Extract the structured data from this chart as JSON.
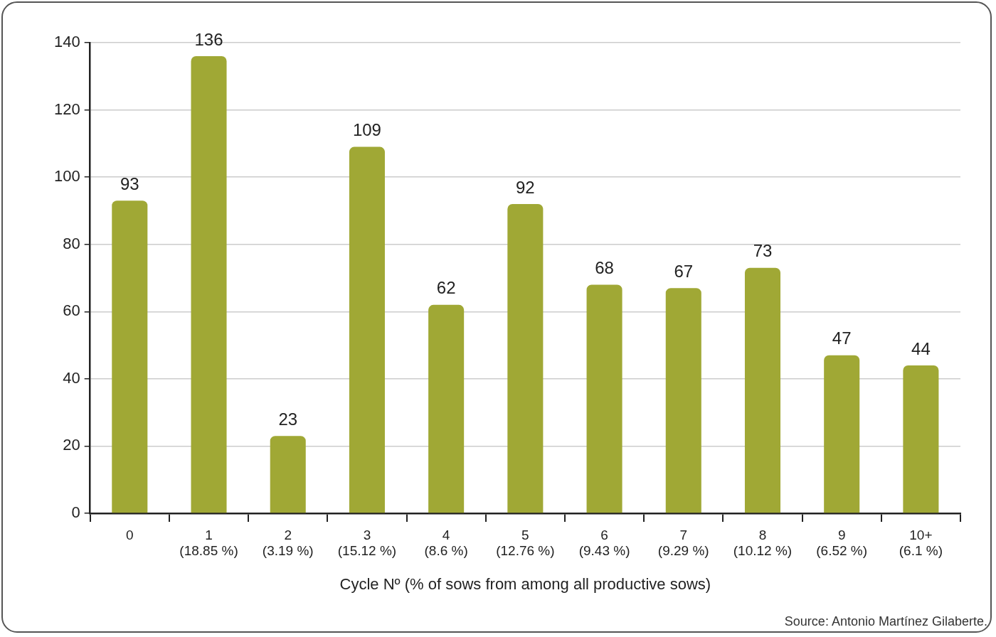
{
  "chart_data": {
    "type": "bar",
    "xlabel": "Cycle Nº (% of sows from among all productive sows)",
    "categories": [
      "0",
      "1\n(18.85 %)",
      "2\n(3.19 %)",
      "3\n(15.12 %)",
      "4\n(8.6 %)",
      "5\n(12.76 %)",
      "6\n(9.43 %)",
      "7\n(9.29 %)",
      "8\n(10.12 %)",
      "9\n(6.52 %)",
      "10+\n(6.1 %)"
    ],
    "values": [
      93,
      136,
      23,
      109,
      62,
      92,
      68,
      67,
      73,
      47,
      44
    ],
    "color": "#a0a835",
    "ylim": [
      0,
      140
    ],
    "yticks": [
      0,
      20,
      40,
      60,
      80,
      100,
      120,
      140
    ],
    "grid": "y",
    "legend": false,
    "data_labels": true,
    "annotations": [
      "Source: Antonio Martínez Gilaberte."
    ]
  }
}
